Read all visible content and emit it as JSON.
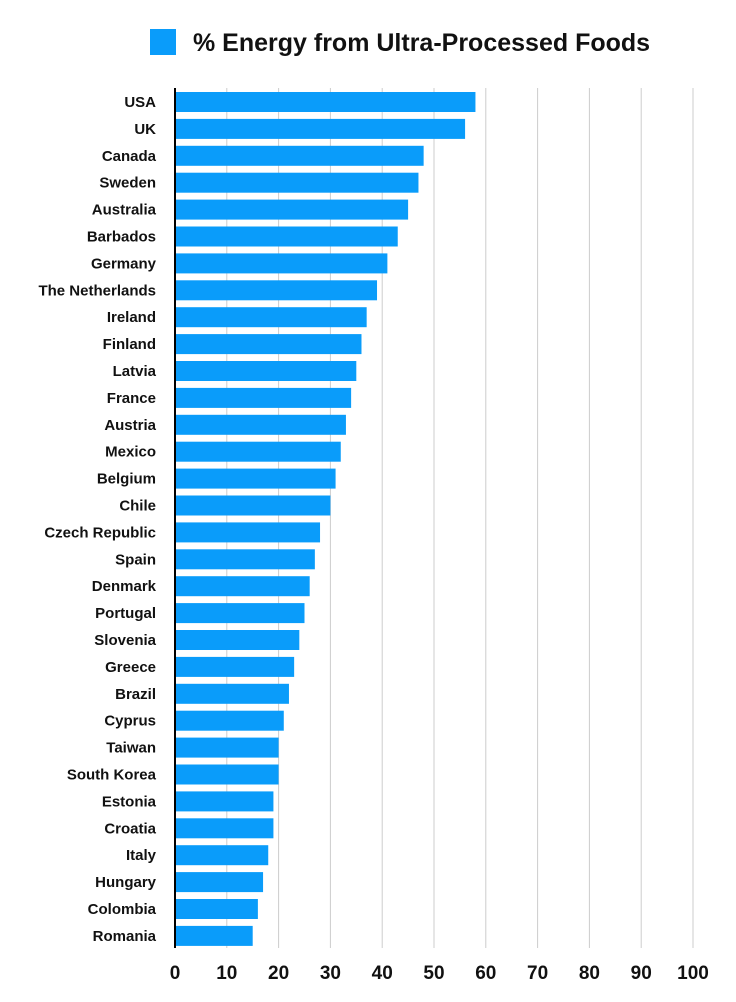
{
  "chart_data": {
    "type": "bar",
    "orientation": "horizontal",
    "categories": [
      "USA",
      "UK",
      "Canada",
      "Sweden",
      "Australia",
      "Barbados",
      "Germany",
      "The Netherlands",
      "Ireland",
      "Finland",
      "Latvia",
      "France",
      "Austria",
      "Mexico",
      "Belgium",
      "Chile",
      "Czech Republic",
      "Spain",
      "Denmark",
      "Portugal",
      "Slovenia",
      "Greece",
      "Brazil",
      "Cyprus",
      "Taiwan",
      "South Korea",
      "Estonia",
      "Croatia",
      "Italy",
      "Hungary",
      "Colombia",
      "Romania"
    ],
    "series": [
      {
        "name": "% Energy from Ultra-Processed Foods",
        "color": "#0a9cfa",
        "values": [
          58,
          56,
          48,
          47,
          45,
          43,
          41,
          39,
          37,
          36,
          35,
          34,
          33,
          32,
          31,
          30,
          28,
          27,
          26,
          25,
          24,
          23,
          22,
          21,
          20,
          20,
          19,
          19,
          18,
          17,
          16,
          15
        ]
      }
    ],
    "xlim": [
      0,
      100
    ],
    "xticks": [
      "0",
      "10",
      "20",
      "30",
      "40",
      "50",
      "60",
      "70",
      "80",
      "90",
      "100"
    ],
    "grid": "vertical",
    "legend_position": "top"
  }
}
